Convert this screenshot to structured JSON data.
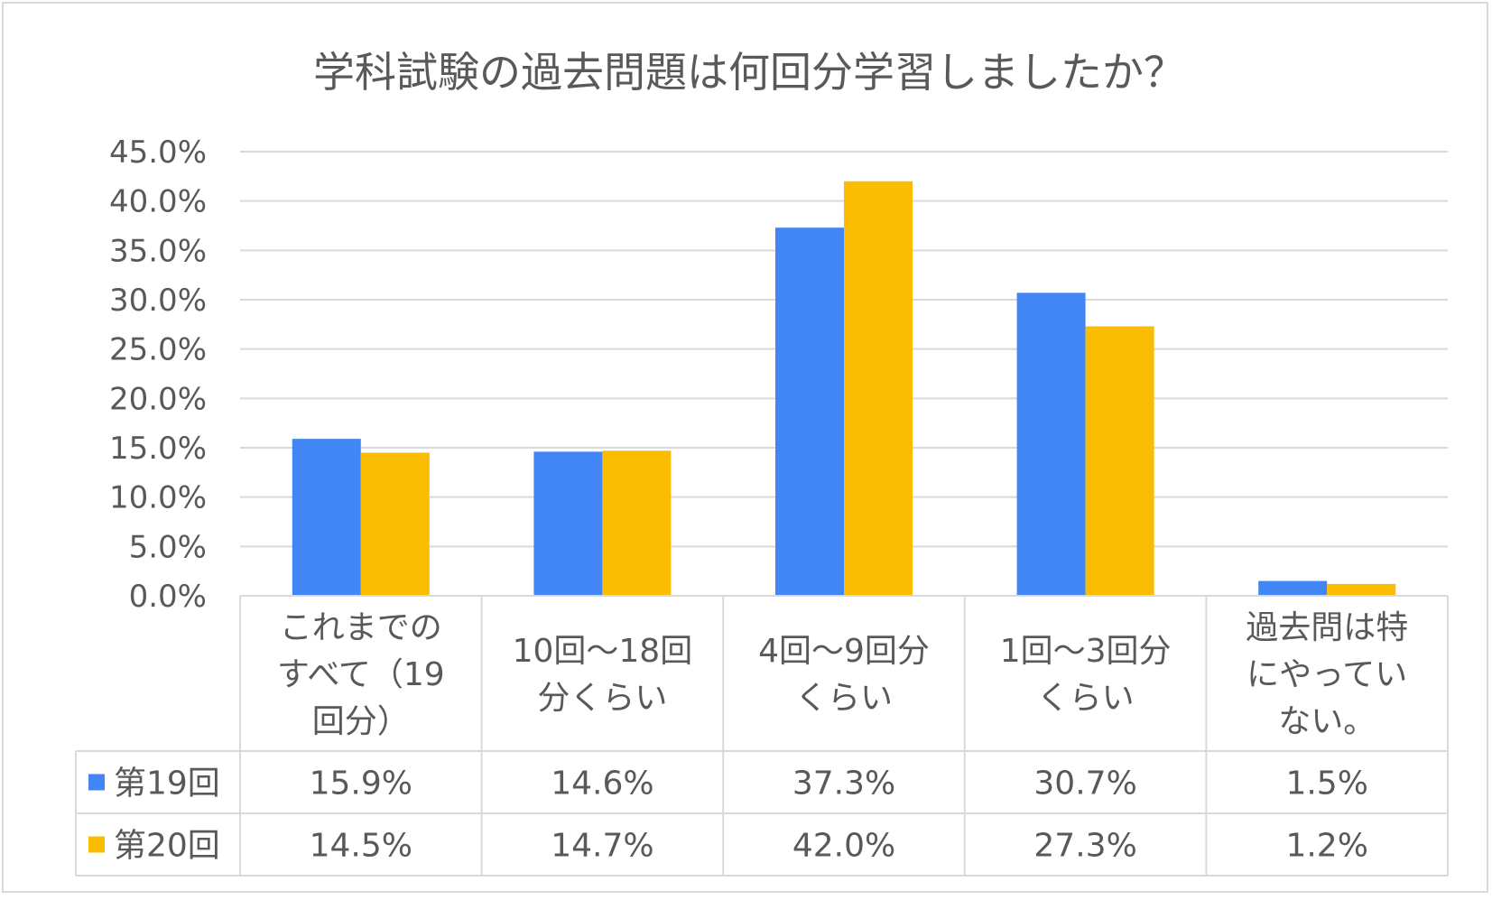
{
  "chart_data": {
    "type": "bar",
    "title": "学科試験の過去問題は何回分学習しましたか？",
    "categories": [
      [
        "これまでの",
        "すべて（19",
        "回分）"
      ],
      [
        "10回～18回",
        "分くらい"
      ],
      [
        "4回～9回分",
        "くらい"
      ],
      [
        "1回～3回分",
        "くらい"
      ],
      [
        "過去問は特",
        "にやってい",
        "ない。"
      ]
    ],
    "series": [
      {
        "name": "第19回",
        "color": "#4285f4",
        "values": [
          15.9,
          14.6,
          37.3,
          30.7,
          1.5
        ],
        "labels": [
          "15.9%",
          "14.6%",
          "37.3%",
          "30.7%",
          "1.5%"
        ]
      },
      {
        "name": "第20回",
        "color": "#fbbc04",
        "values": [
          14.5,
          14.7,
          42.0,
          27.3,
          1.2
        ],
        "labels": [
          "14.5%",
          "14.7%",
          "42.0%",
          "27.3%",
          "1.2%"
        ]
      }
    ],
    "ylim": [
      0,
      45
    ],
    "yticks": [
      "0.0%",
      "5.0%",
      "10.0%",
      "15.0%",
      "20.0%",
      "25.0%",
      "30.0%",
      "35.0%",
      "40.0%",
      "45.0%"
    ],
    "grid": true,
    "legend": "data-table"
  }
}
